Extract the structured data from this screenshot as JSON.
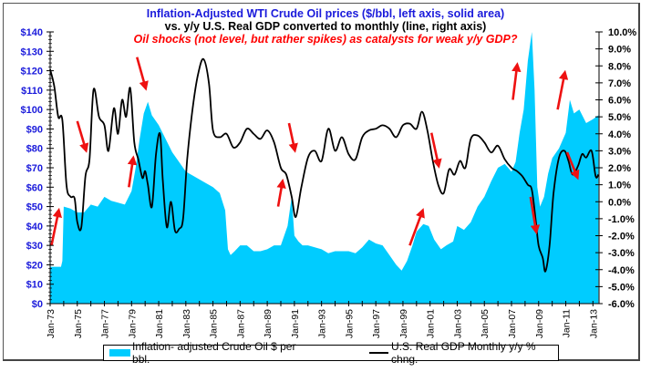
{
  "chart_data": {
    "type": "area",
    "title": "Inflation-Adjusted WTI Crude Oil prices ($/bbl, left axis, solid area)",
    "subtitle": "vs. y/y U.S. Real GDP converted to monthly (line, right axis)",
    "annotation": "Oil shocks (not level, but rather spikes) as catalysts for weak y/y GDP?",
    "colors": {
      "oil_area": "#00ccff",
      "gdp_line": "#000000",
      "arrows": "#ee1111",
      "title": "#1a1adb",
      "left_ticks": "#1a1adb"
    },
    "left_axis": {
      "label": "$/bbl",
      "ylim": [
        0,
        140
      ],
      "ticks": [
        "$0",
        "$10",
        "$20",
        "$30",
        "$40",
        "$50",
        "$60",
        "$70",
        "$80",
        "$90",
        "$100",
        "$110",
        "$120",
        "$130",
        "$140"
      ]
    },
    "right_axis": {
      "label": "y/y %",
      "ylim": [
        -6,
        10
      ],
      "ticks": [
        "-6.0%",
        "-5.0%",
        "-4.0%",
        "-3.0%",
        "-2.0%",
        "-1.0%",
        "0.0%",
        "1.0%",
        "2.0%",
        "3.0%",
        "4.0%",
        "5.0%",
        "6.0%",
        "7.0%",
        "8.0%",
        "9.0%",
        "10.0%"
      ]
    },
    "x_axis": {
      "range": [
        "Jan-73",
        "Jun-13"
      ],
      "ticks": [
        "Jan-73",
        "Jan-75",
        "Jan-77",
        "Jan-79",
        "Jan-81",
        "Jan-83",
        "Jan-85",
        "Jan-87",
        "Jan-89",
        "Jan-91",
        "Jan-93",
        "Jan-95",
        "Jan-97",
        "Jan-99",
        "Jan-01",
        "Jan-03",
        "Jan-05",
        "Jan-07",
        "Jan-09",
        "Jan-11",
        "Jan-13"
      ]
    },
    "series": [
      {
        "name": "Inflation- adjusted Crude Oil $ per bbl.",
        "axis": "left",
        "type": "area",
        "x": [
          1973.0,
          1973.8,
          1973.9,
          1974.0,
          1974.5,
          1975.0,
          1975.5,
          1976.0,
          1976.5,
          1977.0,
          1977.5,
          1978.0,
          1978.5,
          1979.0,
          1979.3,
          1979.6,
          1979.9,
          1980.2,
          1980.5,
          1981.0,
          1981.5,
          1982.0,
          1982.5,
          1983.0,
          1983.5,
          1984.0,
          1984.5,
          1985.0,
          1985.5,
          1985.9,
          1986.1,
          1986.3,
          1986.6,
          1987.0,
          1987.5,
          1988.0,
          1988.5,
          1989.0,
          1989.5,
          1990.0,
          1990.5,
          1990.8,
          1991.0,
          1991.3,
          1991.6,
          1992.0,
          1992.5,
          1993.0,
          1993.5,
          1994.0,
          1994.5,
          1995.0,
          1995.5,
          1996.0,
          1996.5,
          1997.0,
          1997.5,
          1998.0,
          1998.5,
          1998.9,
          1999.3,
          1999.7,
          2000.0,
          2000.5,
          2000.9,
          2001.3,
          2001.8,
          2002.2,
          2002.7,
          2003.0,
          2003.5,
          2004.0,
          2004.5,
          2005.0,
          2005.5,
          2006.0,
          2006.5,
          2007.0,
          2007.3,
          2007.6,
          2007.9,
          2008.2,
          2008.5,
          2008.7,
          2008.9,
          2009.1,
          2009.4,
          2009.7,
          2010.0,
          2010.5,
          2011.0,
          2011.3,
          2011.6,
          2012.0,
          2012.5,
          2013.0,
          2013.4
        ],
        "values": [
          19,
          19,
          22,
          50,
          49,
          47,
          47,
          51,
          50,
          55,
          53,
          52,
          51,
          58,
          70,
          85,
          98,
          104,
          97,
          92,
          85,
          78,
          73,
          68,
          66,
          64,
          62,
          60,
          57,
          48,
          28,
          25,
          27,
          30,
          30,
          27,
          27,
          28,
          30,
          30,
          40,
          55,
          35,
          32,
          30,
          30,
          29,
          28,
          26,
          27,
          27,
          27,
          26,
          29,
          33,
          31,
          30,
          25,
          20,
          17,
          22,
          30,
          37,
          41,
          40,
          33,
          28,
          30,
          32,
          40,
          38,
          42,
          50,
          55,
          63,
          70,
          72,
          68,
          73,
          88,
          100,
          125,
          140,
          110,
          60,
          50,
          55,
          67,
          75,
          80,
          88,
          105,
          98,
          100,
          93,
          95,
          97
        ]
      },
      {
        "name": "U.S. Real GDP Monthly y/y % chng.",
        "axis": "right",
        "type": "line",
        "x": [
          1973.0,
          1973.3,
          1973.6,
          1973.9,
          1974.2,
          1974.5,
          1974.8,
          1975.0,
          1975.3,
          1975.6,
          1975.9,
          1976.2,
          1976.6,
          1977.0,
          1977.3,
          1977.7,
          1978.0,
          1978.3,
          1978.6,
          1978.9,
          1979.2,
          1979.5,
          1979.8,
          1980.0,
          1980.2,
          1980.5,
          1980.8,
          1981.1,
          1981.3,
          1981.6,
          1981.9,
          1982.2,
          1982.5,
          1982.8,
          1983.1,
          1983.5,
          1983.9,
          1984.3,
          1984.7,
          1985.0,
          1985.5,
          1986.0,
          1986.5,
          1987.0,
          1987.5,
          1988.0,
          1988.5,
          1989.0,
          1989.5,
          1990.0,
          1990.4,
          1990.8,
          1991.1,
          1991.5,
          1992.0,
          1992.5,
          1993.0,
          1993.5,
          1994.0,
          1994.5,
          1995.0,
          1995.5,
          1996.0,
          1996.5,
          1997.0,
          1997.5,
          1998.0,
          1998.5,
          1999.0,
          1999.5,
          2000.0,
          2000.4,
          2000.8,
          2001.2,
          2001.6,
          2002.0,
          2002.4,
          2002.8,
          2003.2,
          2003.6,
          2004.0,
          2004.5,
          2005.0,
          2005.5,
          2006.0,
          2006.5,
          2007.0,
          2007.4,
          2007.8,
          2008.2,
          2008.5,
          2008.8,
          2009.0,
          2009.3,
          2009.5,
          2009.8,
          2010.1,
          2010.5,
          2010.9,
          2011.2,
          2011.5,
          2011.9,
          2012.2,
          2012.5,
          2012.9,
          2013.2,
          2013.4
        ],
        "values": [
          7.8,
          6.8,
          5.0,
          4.8,
          1.0,
          0.3,
          0.2,
          -1.2,
          -1.5,
          1.5,
          2.5,
          6.6,
          5.0,
          4.5,
          3.0,
          5.5,
          4.0,
          6.0,
          5.0,
          6.7,
          3.5,
          2.5,
          1.4,
          1.8,
          1.0,
          -0.3,
          2.8,
          4.0,
          1.3,
          -1.5,
          0.0,
          -1.7,
          -1.6,
          -1.0,
          2.5,
          5.5,
          7.5,
          8.4,
          7.0,
          4.2,
          3.8,
          4.0,
          3.2,
          3.5,
          4.3,
          4.0,
          3.7,
          4.2,
          3.5,
          2.0,
          1.6,
          0.3,
          -0.9,
          0.8,
          2.6,
          3.0,
          2.4,
          4.3,
          3.0,
          3.8,
          2.8,
          2.5,
          3.8,
          4.2,
          4.3,
          4.5,
          4.3,
          3.8,
          4.5,
          4.6,
          4.3,
          5.3,
          4.2,
          2.4,
          1.0,
          0.5,
          1.9,
          1.6,
          2.4,
          2.0,
          3.7,
          3.9,
          3.5,
          2.9,
          3.3,
          2.5,
          2.0,
          1.8,
          1.5,
          1.0,
          0.7,
          -1.2,
          -2.6,
          -3.3,
          -4.1,
          -2.6,
          0.5,
          2.6,
          3.0,
          2.4,
          1.6,
          2.1,
          2.8,
          2.6,
          3.0,
          1.5,
          1.6
        ]
      }
    ],
    "arrows": [
      {
        "direction": "up",
        "from": [
          1973.1,
          30
        ],
        "to": [
          1973.6,
          47
        ]
      },
      {
        "direction": "down",
        "from": [
          1975.0,
          94
        ],
        "to": [
          1975.6,
          80
        ]
      },
      {
        "direction": "up",
        "from": [
          1978.8,
          60
        ],
        "to": [
          1979.1,
          74
        ]
      },
      {
        "direction": "down",
        "from": [
          1979.4,
          127
        ],
        "to": [
          1980.0,
          112
        ]
      },
      {
        "direction": "up",
        "from": [
          1989.8,
          50
        ],
        "to": [
          1990.1,
          62
        ]
      },
      {
        "direction": "down",
        "from": [
          1990.6,
          93
        ],
        "to": [
          1991.0,
          80
        ]
      },
      {
        "direction": "up",
        "from": [
          1999.5,
          30
        ],
        "to": [
          2000.4,
          47
        ]
      },
      {
        "direction": "down",
        "from": [
          2001.1,
          88
        ],
        "to": [
          2001.6,
          72
        ]
      },
      {
        "direction": "up",
        "from": [
          2007.1,
          105
        ],
        "to": [
          2007.4,
          122
        ]
      },
      {
        "direction": "down",
        "from": [
          2008.4,
          55
        ],
        "to": [
          2008.8,
          38
        ]
      },
      {
        "direction": "up",
        "from": [
          2010.4,
          100
        ],
        "to": [
          2010.9,
          118
        ]
      },
      {
        "direction": "down",
        "from": [
          2011.1,
          78
        ],
        "to": [
          2011.8,
          66
        ]
      }
    ],
    "legend": {
      "placement": "bottom",
      "entries": [
        "Inflation- adjusted Crude Oil $ per bbl.",
        "U.S. Real GDP Monthly y/y % chng."
      ]
    }
  }
}
